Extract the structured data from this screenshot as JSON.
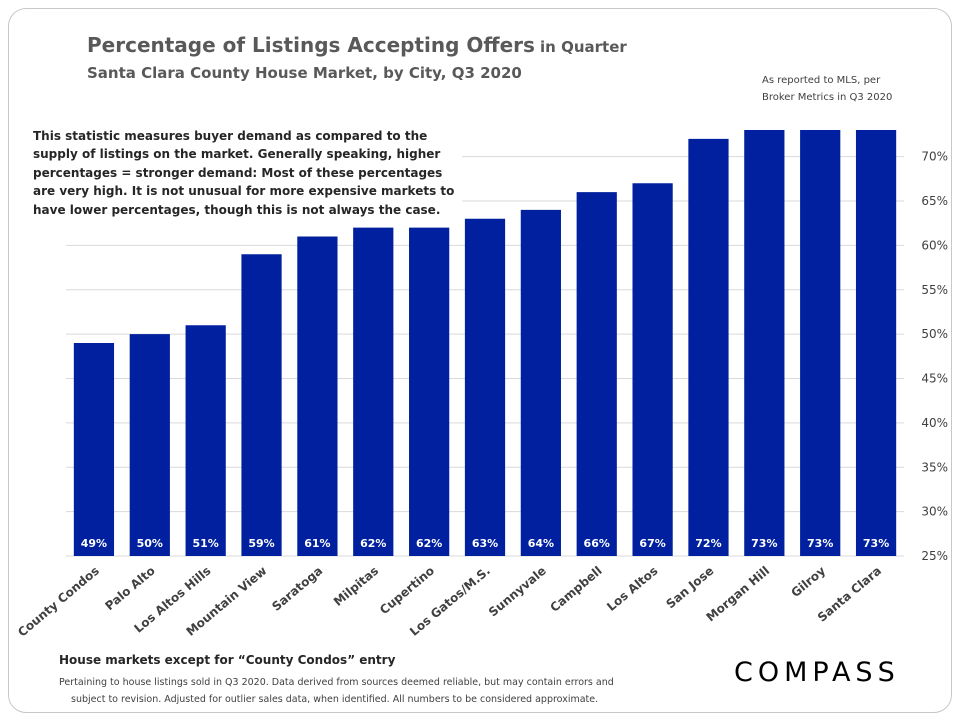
{
  "header": {
    "title": "Percentage of Listings Accepting Offers",
    "title_suffix": "in Quarter",
    "subtitle": "Santa Clara County House Market, by City, Q3 2020",
    "source_line1": "As reported to MLS, per",
    "source_line2": "Broker Metrics in Q3 2020"
  },
  "description": "This statistic measures buyer demand as compared to the supply of listings on the market. Generally speaking, higher percentages = stronger demand: Most of these percentages are very high. It is not unusual for more expensive markets to have lower percentages, though this is not always the case.",
  "footer": {
    "title": "House markets except for “County Condos” entry",
    "note_line1": "Pertaining to house listings sold in Q3 2020. Data derived from sources deemed reliable, but may contain errors and",
    "note_line2": "subject to revision. Adjusted for outlier sales data, when identified. All numbers to be considered approximate."
  },
  "brand": {
    "logo_text": "COMPASS"
  },
  "colors": {
    "bar": "#00209F",
    "gridline": "#D9D9D9",
    "axis_text": "#404040"
  },
  "chart_data": {
    "type": "bar",
    "title": "Percentage of Listings Accepting Offers in Quarter",
    "subtitle": "Santa Clara County House Market, by City, Q3 2020",
    "categories": [
      "County Condos",
      "Palo Alto",
      "Los Altos Hills",
      "Mountain View",
      "Saratoga",
      "Milpitas",
      "Cupertino",
      "Los Gatos/M.S.",
      "Sunnyvale",
      "Campbell",
      "Los Altos",
      "San Jose",
      "Morgan Hill",
      "Gilroy",
      "Santa Clara"
    ],
    "values": [
      49,
      50,
      51,
      59,
      61,
      62,
      62,
      63,
      64,
      66,
      67,
      72,
      73,
      73,
      73
    ],
    "data_labels": [
      "49%",
      "50%",
      "51%",
      "59%",
      "61%",
      "62%",
      "62%",
      "63%",
      "64%",
      "66%",
      "67%",
      "72%",
      "73%",
      "73%",
      "73%"
    ],
    "ylim": [
      25,
      73
    ],
    "yticks": [
      25,
      30,
      35,
      40,
      45,
      50,
      55,
      60,
      65,
      70
    ],
    "ytick_labels": [
      "25%",
      "30%",
      "35%",
      "40%",
      "45%",
      "50%",
      "55%",
      "60%",
      "65%",
      "70%"
    ],
    "y_axis_side": "right",
    "grid": true,
    "legend": "none"
  }
}
